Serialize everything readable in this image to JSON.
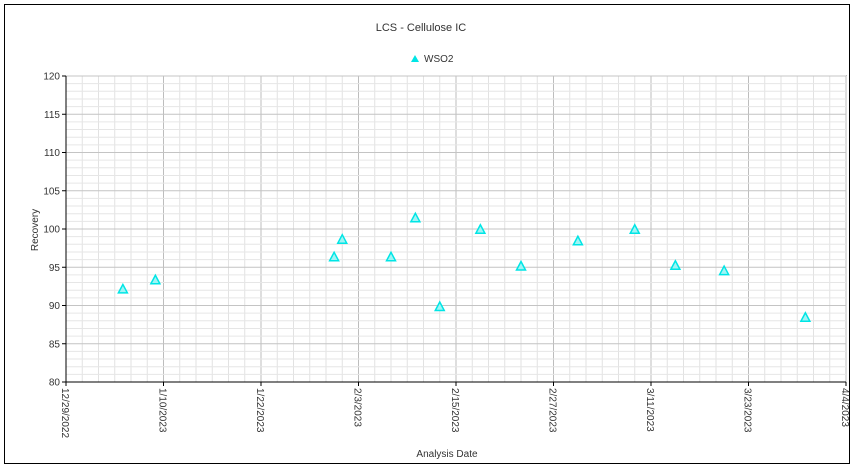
{
  "chart_data": {
    "type": "scatter",
    "title": "LCS - Cellulose IC",
    "xlabel": "Analysis Date",
    "ylabel": "Recovery",
    "xlim": [
      "2022-12-29",
      "2023-04-04"
    ],
    "ylim": [
      80,
      120
    ],
    "y_ticks": [
      "120",
      "115",
      "110",
      "105",
      "100",
      "95",
      "90",
      "85",
      "80"
    ],
    "x_ticks": [
      "12/29/2022",
      "1/10/2023",
      "1/22/2023",
      "2/3/2023",
      "2/15/2023",
      "2/27/2023",
      "3/11/2023",
      "3/23/2023",
      "4/4/2023"
    ],
    "grid": true,
    "legend_position": "top-center",
    "series": [
      {
        "name": "WSO2",
        "color": "#00e5e5",
        "marker": "triangle",
        "points": [
          {
            "x": "2023-01-05",
            "y": 92.1
          },
          {
            "x": "2023-01-09",
            "y": 93.3
          },
          {
            "x": "2023-01-31",
            "y": 96.3
          },
          {
            "x": "2023-02-01",
            "y": 98.6
          },
          {
            "x": "2023-02-07",
            "y": 96.3
          },
          {
            "x": "2023-02-10",
            "y": 101.4
          },
          {
            "x": "2023-02-13",
            "y": 89.8
          },
          {
            "x": "2023-02-18",
            "y": 99.9
          },
          {
            "x": "2023-02-23",
            "y": 95.1
          },
          {
            "x": "2023-03-02",
            "y": 98.4
          },
          {
            "x": "2023-03-09",
            "y": 99.9
          },
          {
            "x": "2023-03-14",
            "y": 95.2
          },
          {
            "x": "2023-03-20",
            "y": 94.5
          },
          {
            "x": "2023-03-30",
            "y": 88.4
          }
        ]
      }
    ]
  }
}
